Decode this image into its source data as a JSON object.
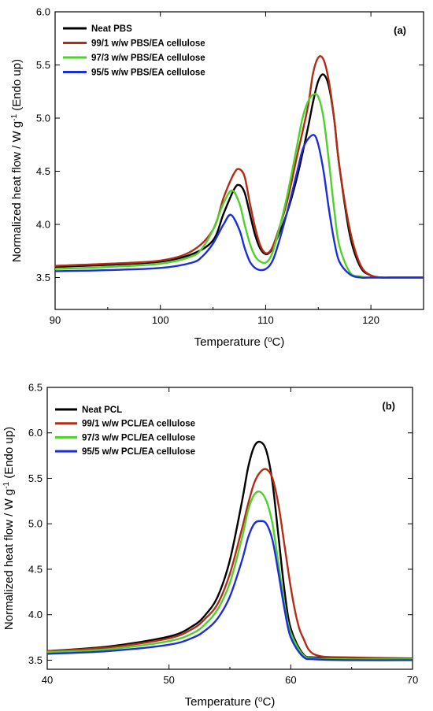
{
  "chart_data": [
    {
      "type": "line",
      "panel_label": "(a)",
      "xlabel": "Temperature (°C)",
      "ylabel": "Normalized heat flow / W g⁻¹ (Endo up)",
      "xlim": [
        90,
        125
      ],
      "ylim": [
        3.2,
        6.0
      ],
      "xticks": [
        90,
        100,
        110,
        120
      ],
      "yticks": [
        3.5,
        4.0,
        4.5,
        5.0,
        5.5,
        6.0
      ],
      "ytick_labels": [
        "3.5",
        "4.0",
        "4.5",
        "5.0",
        "5.5",
        "6.0"
      ],
      "grid": false,
      "legend_position": "top-left",
      "series": [
        {
          "name": "Neat PBS",
          "color": "#000000",
          "x": [
            90,
            95,
            100,
            103,
            105,
            106,
            107,
            107.5,
            108,
            108.5,
            109,
            109.5,
            110,
            110.5,
            111,
            112,
            113,
            114,
            114.5,
            115,
            115.5,
            116,
            116.5,
            117,
            118,
            119,
            120,
            121,
            122,
            125
          ],
          "y": [
            3.6,
            3.62,
            3.65,
            3.72,
            3.85,
            4.1,
            4.33,
            4.37,
            4.3,
            4.1,
            3.9,
            3.77,
            3.72,
            3.75,
            3.85,
            4.1,
            4.45,
            4.9,
            5.15,
            5.35,
            5.41,
            5.3,
            5.0,
            4.55,
            3.9,
            3.6,
            3.52,
            3.5,
            3.5,
            3.5
          ]
        },
        {
          "name": "99/1 w/w PBS/EA cellulose",
          "color": "#b22d14",
          "x": [
            90,
            95,
            100,
            103,
            105,
            106,
            107,
            107.5,
            108,
            108.5,
            109,
            109.5,
            110,
            110.5,
            111,
            112,
            113,
            114,
            114.5,
            115,
            115.5,
            116,
            116.5,
            117,
            118,
            119,
            120,
            121,
            122,
            125
          ],
          "y": [
            3.61,
            3.63,
            3.66,
            3.75,
            3.95,
            4.25,
            4.48,
            4.52,
            4.45,
            4.2,
            3.97,
            3.8,
            3.73,
            3.76,
            3.88,
            4.2,
            4.65,
            5.1,
            5.42,
            5.57,
            5.55,
            5.35,
            5.0,
            4.55,
            3.95,
            3.62,
            3.52,
            3.5,
            3.5,
            3.5
          ]
        },
        {
          "name": "97/3 w/w PBS/EA cellulose",
          "color": "#4ed12a",
          "x": [
            90,
            95,
            100,
            103,
            104,
            105,
            106,
            106.8,
            107.5,
            108,
            108.5,
            109,
            109.5,
            110,
            110.5,
            111,
            112,
            113,
            113.5,
            114,
            114.5,
            115,
            115.5,
            116,
            116.5,
            117,
            118,
            119,
            120,
            122,
            125
          ],
          "y": [
            3.58,
            3.6,
            3.63,
            3.7,
            3.78,
            3.95,
            4.2,
            4.32,
            4.2,
            4.0,
            3.82,
            3.7,
            3.65,
            3.64,
            3.7,
            3.85,
            4.25,
            4.75,
            5.0,
            5.15,
            5.22,
            5.2,
            5.0,
            4.6,
            4.15,
            3.8,
            3.55,
            3.51,
            3.5,
            3.5,
            3.5
          ]
        },
        {
          "name": "95/5 w/w PBS/EA cellulose",
          "color": "#1c2fd6",
          "x": [
            90,
            95,
            100,
            103,
            104,
            105,
            106,
            106.7,
            107.5,
            108,
            108.5,
            109,
            109.5,
            110,
            110.5,
            111,
            112,
            113,
            113.5,
            114,
            114.6,
            115,
            115.5,
            116,
            116.5,
            117,
            118,
            119,
            120,
            122,
            125
          ],
          "y": [
            3.56,
            3.57,
            3.59,
            3.64,
            3.7,
            3.82,
            4.0,
            4.09,
            3.95,
            3.78,
            3.65,
            3.59,
            3.57,
            3.58,
            3.63,
            3.75,
            4.1,
            4.5,
            4.7,
            4.8,
            4.84,
            4.75,
            4.5,
            4.15,
            3.85,
            3.65,
            3.53,
            3.5,
            3.5,
            3.5,
            3.5
          ]
        }
      ]
    },
    {
      "type": "line",
      "panel_label": "(b)",
      "xlabel": "Temperature (°C)",
      "ylabel": "Normalized heat flow / W g⁻¹ (Endo up)",
      "xlim": [
        40,
        70
      ],
      "ylim": [
        3.4,
        6.5
      ],
      "xticks": [
        40,
        50,
        60,
        70
      ],
      "yticks": [
        3.5,
        4.0,
        4.5,
        5.0,
        5.5,
        6.0,
        6.5
      ],
      "ytick_labels": [
        "3.5",
        "4.0",
        "4.5",
        "5.0",
        "5.5",
        "6.0",
        "6.5"
      ],
      "grid": false,
      "legend_position": "top-left",
      "series": [
        {
          "name": "Neat PCL",
          "color": "#000000",
          "x": [
            40,
            45,
            50,
            52,
            53,
            54,
            55,
            56,
            56.5,
            57,
            57.5,
            58,
            58.5,
            59,
            59.5,
            60,
            61,
            62,
            65,
            70
          ],
          "y": [
            3.6,
            3.65,
            3.76,
            3.88,
            4.0,
            4.2,
            4.6,
            5.25,
            5.62,
            5.85,
            5.9,
            5.8,
            5.45,
            4.85,
            4.25,
            3.85,
            3.57,
            3.53,
            3.52,
            3.51
          ]
        },
        {
          "name": "99/1 w/w PCL/EA cellulose",
          "color": "#b22d14",
          "x": [
            40,
            45,
            50,
            52,
            53,
            54,
            55,
            56,
            56.5,
            57,
            57.5,
            58,
            58.5,
            59,
            59.5,
            60,
            60.5,
            61,
            62,
            65,
            70
          ],
          "y": [
            3.6,
            3.64,
            3.74,
            3.85,
            3.96,
            4.12,
            4.45,
            4.95,
            5.22,
            5.45,
            5.57,
            5.6,
            5.5,
            5.2,
            4.75,
            4.3,
            3.95,
            3.75,
            3.56,
            3.53,
            3.52
          ]
        },
        {
          "name": "97/3 w/w PCL/EA cellulose",
          "color": "#4ed12a",
          "x": [
            40,
            45,
            50,
            52,
            53,
            54,
            55,
            56,
            56.5,
            57,
            57.5,
            58,
            58.5,
            59,
            59.5,
            60,
            61,
            62,
            65,
            70
          ],
          "y": [
            3.59,
            3.62,
            3.71,
            3.8,
            3.9,
            4.06,
            4.35,
            4.85,
            5.15,
            5.32,
            5.35,
            5.25,
            5.0,
            4.55,
            4.1,
            3.8,
            3.56,
            3.52,
            3.51,
            3.51
          ]
        },
        {
          "name": "95/5 w/w PCL/EA cellulose",
          "color": "#1c2fd6",
          "x": [
            40,
            45,
            50,
            52,
            53,
            54,
            55,
            56,
            56.5,
            57,
            57.5,
            58,
            58.5,
            59,
            59.5,
            60,
            61,
            62,
            65,
            70
          ],
          "y": [
            3.57,
            3.6,
            3.67,
            3.75,
            3.83,
            3.96,
            4.2,
            4.6,
            4.85,
            5.0,
            5.03,
            5.0,
            4.82,
            4.45,
            4.05,
            3.75,
            3.54,
            3.51,
            3.5,
            3.5
          ]
        }
      ]
    }
  ]
}
